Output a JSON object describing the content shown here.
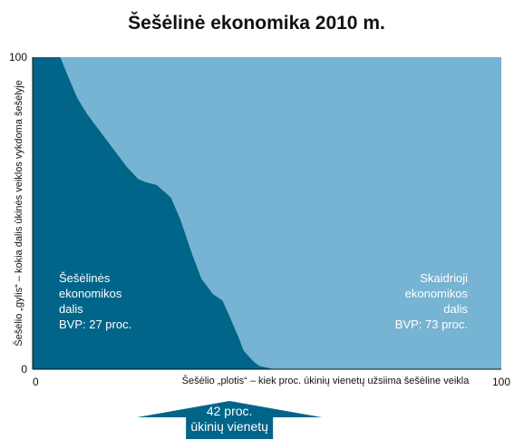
{
  "chart_data": {
    "type": "area",
    "title": "Šešėlinė ekonomika 2010 m.",
    "xlabel": "Šešėlio „plotis“ – kiek proc. ūkinių vienetų užsiima šešėline veikla",
    "ylabel": "Šešėlio „gylis“ – kokia dalis ūkinės veiklos vykdoma šešėlyje",
    "xlim": [
      0,
      100
    ],
    "ylim": [
      0,
      100
    ],
    "x_ticks": [
      "0",
      "100"
    ],
    "y_ticks": [
      "0",
      "100"
    ],
    "grid": false,
    "series": [
      {
        "name": "Šešėlinės ekonomikos dalis",
        "x": [
          0,
          5.9,
          7.5,
          9.5,
          11.5,
          13,
          15,
          17.5,
          20,
          22.5,
          24,
          26.5,
          29.5,
          31.5,
          34,
          36,
          38.5,
          40.5,
          42,
          44,
          45,
          46.5,
          47.5,
          48.5,
          50,
          51.5,
          100
        ],
        "y": [
          100,
          100,
          94,
          87,
          82,
          79,
          75,
          70,
          65,
          61,
          60,
          59,
          55,
          48,
          37,
          29,
          24,
          22,
          17,
          10,
          6,
          3.5,
          2,
          1,
          0.5,
          0,
          0
        ],
        "color": "#006589"
      },
      {
        "name": "Skaidrioji ekonomikos dalis",
        "color": "#77b3d2"
      }
    ],
    "area_labels": [
      {
        "lines": [
          "Šešėlinės",
          "ekonomikos",
          "dalis",
          "BVP: 27 proc."
        ]
      },
      {
        "lines": [
          "Skaidrioji",
          "ekonomikos",
          "dalis",
          "BVP: 73 proc."
        ]
      }
    ],
    "annotation": {
      "lines": [
        "42 proc.",
        "ūkinių vienetų"
      ],
      "x": 42,
      "color": "#006589"
    }
  }
}
